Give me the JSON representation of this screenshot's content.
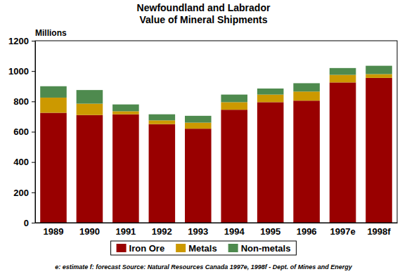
{
  "chart_data": {
    "type": "bar",
    "title": "Newfoundland and Labrador",
    "subtitle": "Value of Mineral Shipments",
    "y_label": "Millions",
    "annotation": "e: estimate f: forecast Source: Natural Resources Canada 1997e, 1998f - Dept. of Mines and Energy",
    "categories": [
      "1989",
      "1990",
      "1991",
      "1992",
      "1993",
      "1994",
      "1995",
      "1996",
      "1997e",
      "1998f"
    ],
    "series": [
      {
        "name": "Iron Ore",
        "color": "#990000",
        "values": [
          725,
          710,
          715,
          650,
          620,
          745,
          795,
          805,
          925,
          955
        ]
      },
      {
        "name": "Metals",
        "color": "#cc9900",
        "values": [
          100,
          75,
          20,
          25,
          40,
          50,
          50,
          60,
          50,
          25
        ]
      },
      {
        "name": "Non-metals",
        "color": "#4e8a4e",
        "values": [
          75,
          90,
          45,
          40,
          45,
          50,
          40,
          55,
          45,
          55
        ]
      }
    ],
    "stacked": true,
    "ylim": [
      0,
      1200
    ],
    "yticks": [
      0,
      200,
      400,
      600,
      800,
      1000,
      1200
    ],
    "grid": false,
    "legend": "bottom"
  }
}
